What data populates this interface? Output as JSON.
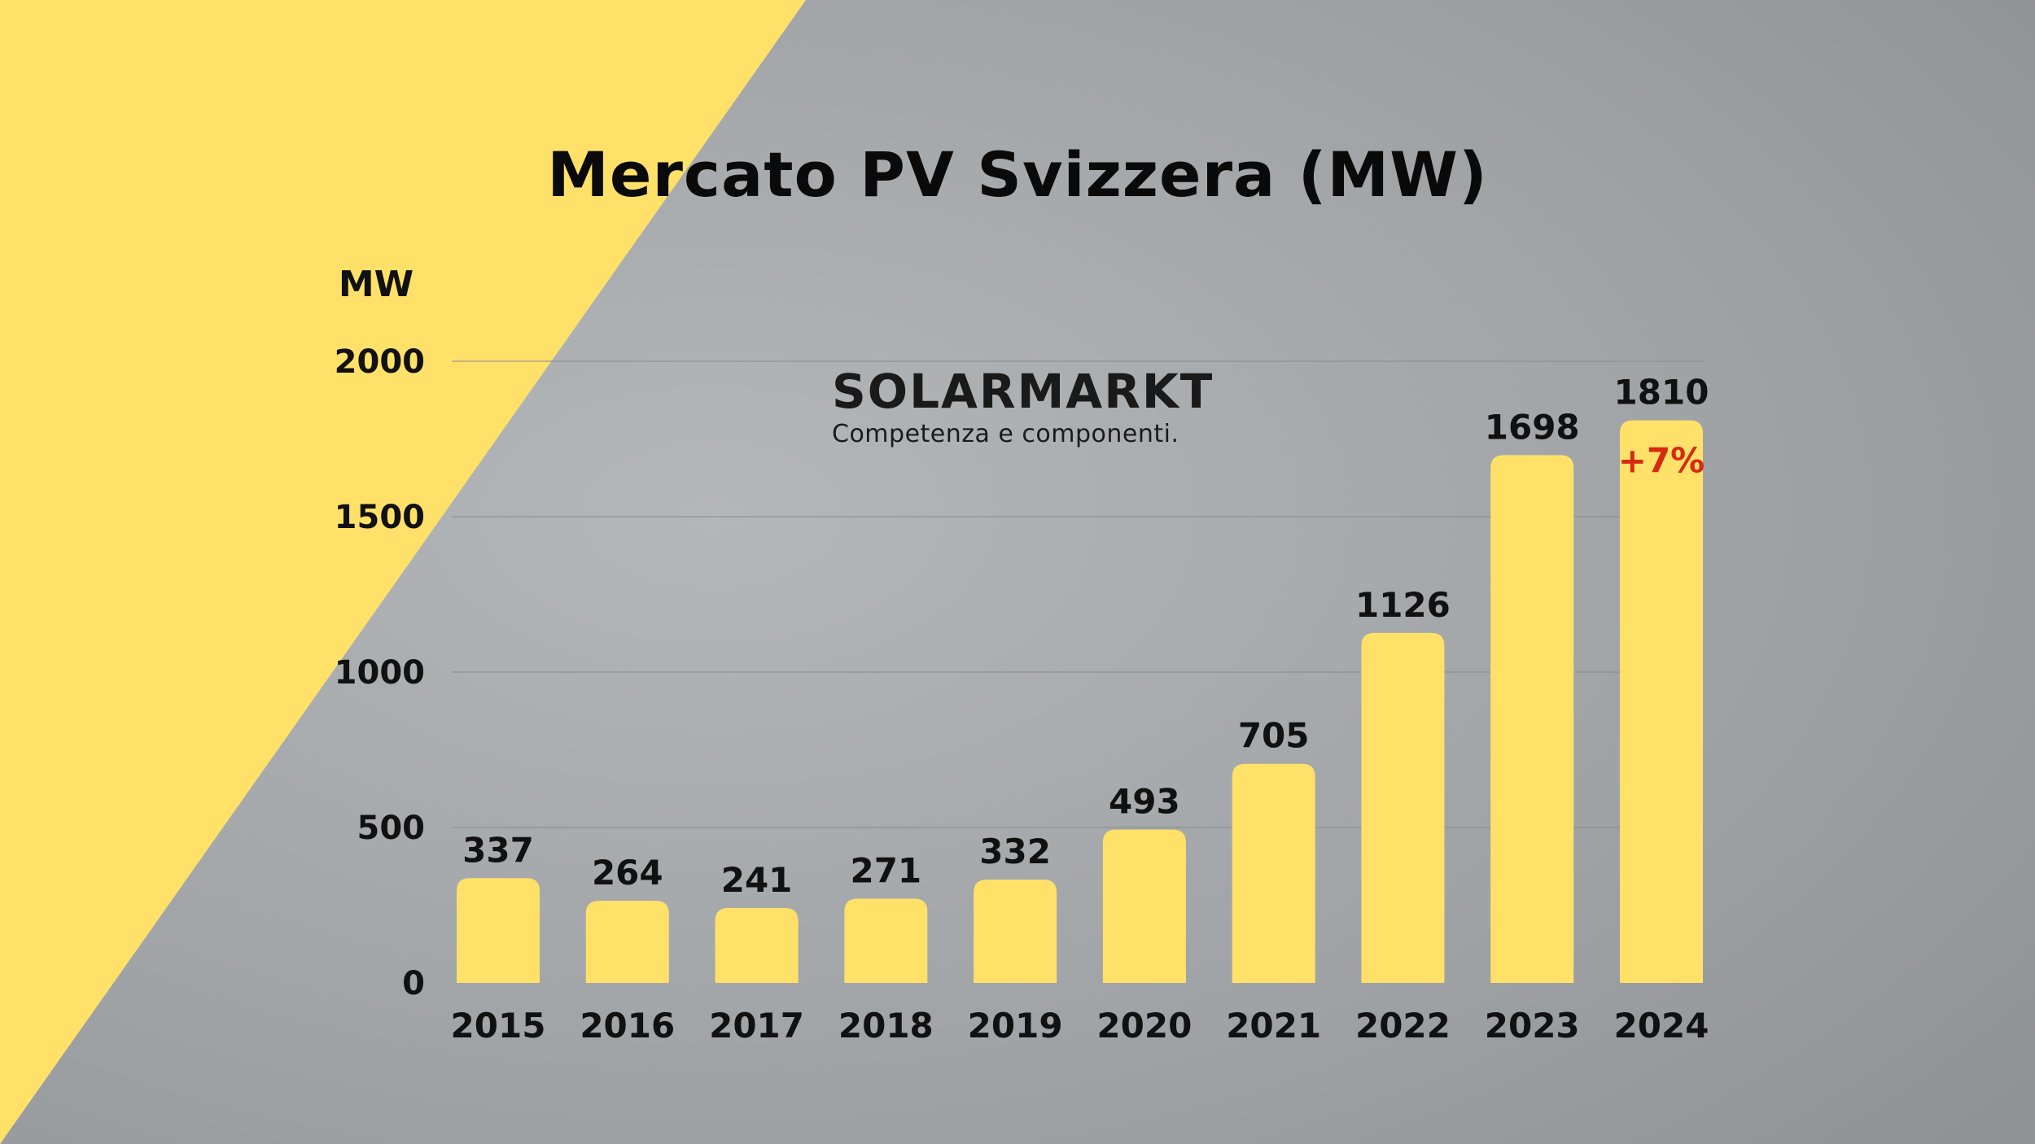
{
  "colors": {
    "background_yellow": "#ffe169",
    "concrete": "#9ea1a4",
    "bar": "#ffe169",
    "text": "#111111",
    "highlight": "#d62a12",
    "gridline": "#8a8d90"
  },
  "logo": {
    "name": "SOLARMARKT",
    "tagline": "Competenza e componenti."
  },
  "chart_data": {
    "type": "bar",
    "title": "Mercato PV Svizzera (MW)",
    "ylabel": "MW",
    "xlabel": "",
    "ylim": [
      0,
      2000
    ],
    "yticks": [
      0,
      500,
      1000,
      1500,
      2000
    ],
    "categories": [
      "2015",
      "2016",
      "2017",
      "2018",
      "2019",
      "2020",
      "2021",
      "2022",
      "2023",
      "2024"
    ],
    "values": [
      337,
      264,
      241,
      271,
      332,
      493,
      705,
      1126,
      1698,
      1810
    ],
    "grid": true,
    "annotations": [
      {
        "category": "2024",
        "text": "+7%"
      }
    ]
  }
}
